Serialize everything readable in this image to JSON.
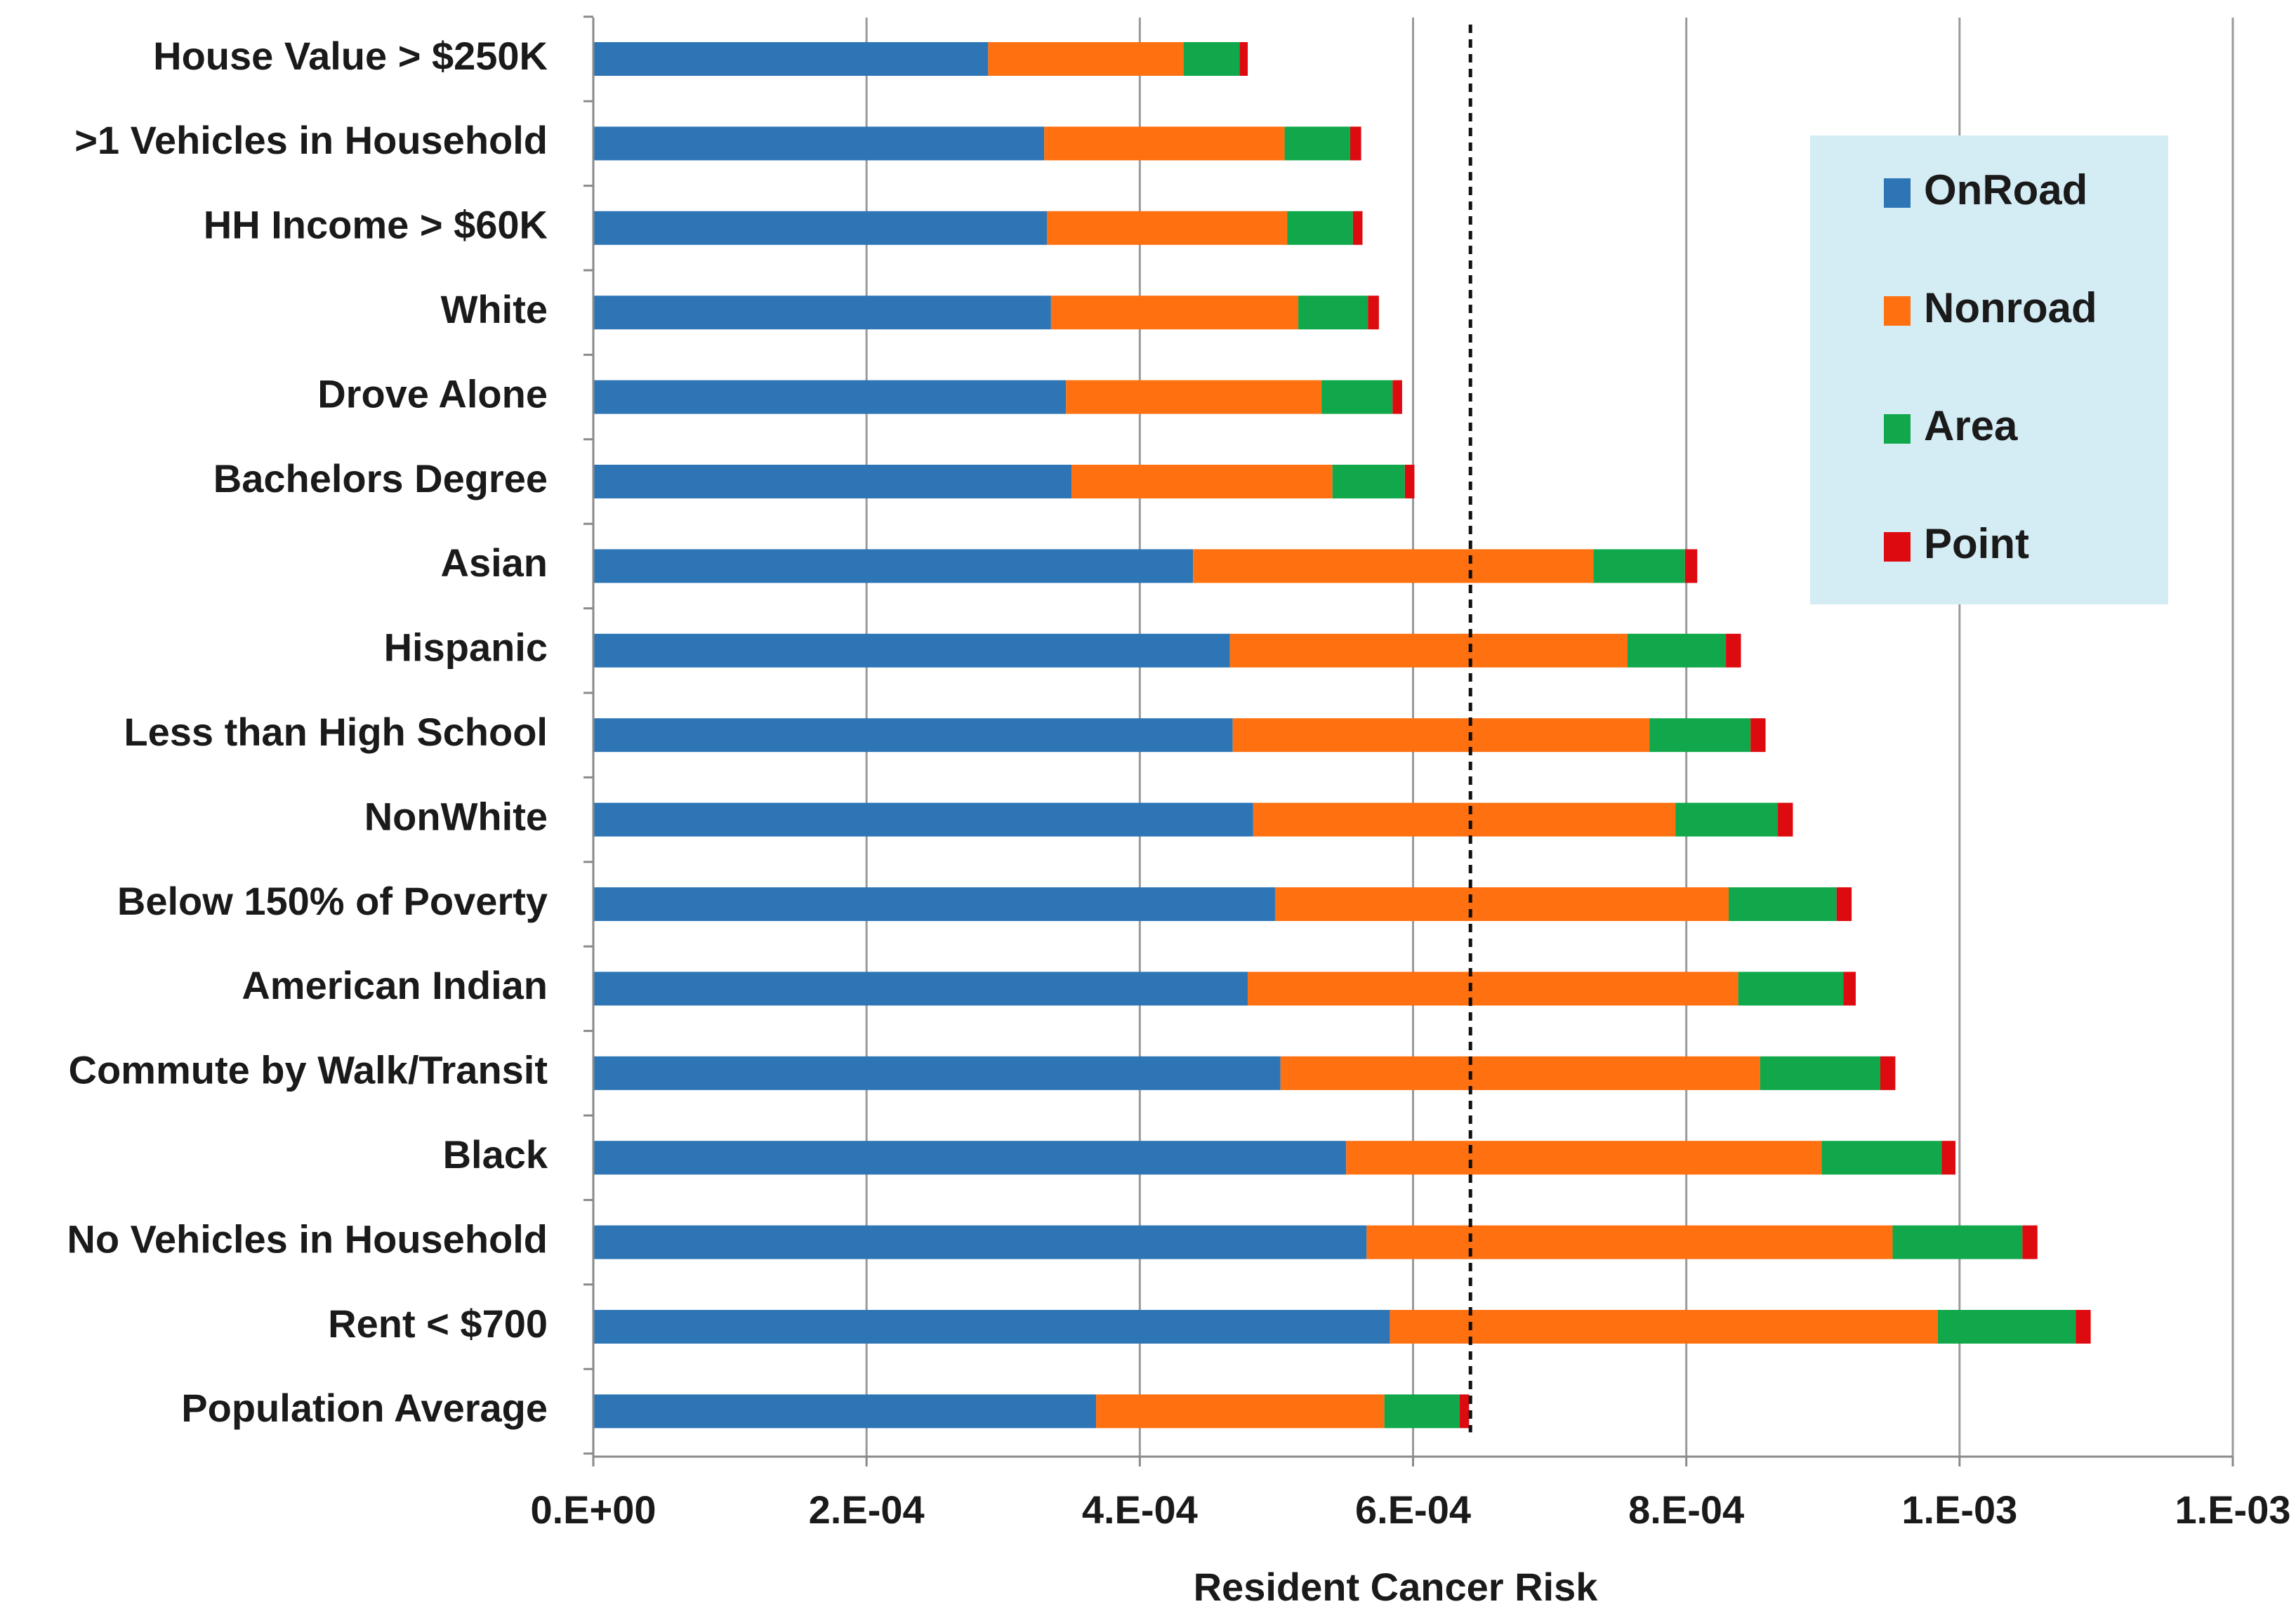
{
  "chart_data": {
    "type": "bar",
    "orientation": "horizontal",
    "stacked": true,
    "title": "",
    "xlabel": "Resident Cancer Risk",
    "ylabel": "",
    "xlim": [
      0,
      0.0012
    ],
    "x_tick_values": [
      0,
      0.0002,
      0.0004,
      0.0006,
      0.0008,
      0.001,
      0.0012
    ],
    "x_tick_labels": [
      "0.E+00",
      "2.E-04",
      "4.E-04",
      "6.E-04",
      "8.E-04",
      "1.E-03",
      "1.E-03"
    ],
    "grid": "vertical",
    "legend_position": "top-right",
    "reference_line": {
      "value": 0.000642,
      "style": "dashed",
      "represents": "Population Average"
    },
    "categories": [
      "House Value > $250K",
      ">1 Vehicles in Household",
      "HH Income > $60K",
      "White",
      "Drove Alone",
      "Bachelors Degree",
      "Asian",
      "Hispanic",
      "Less than High School",
      "NonWhite",
      "Below 150% of Poverty",
      "American Indian",
      "Commute by Walk/Transit",
      "Black",
      "No Vehicles in Household",
      "Rent < $700",
      "Population Average"
    ],
    "series": [
      {
        "name": "OnRoad",
        "color": "#2e75b6",
        "values": [
          0.000289,
          0.00033,
          0.000332,
          0.000335,
          0.000346,
          0.00035,
          0.000439,
          0.000466,
          0.000468,
          0.000483,
          0.000499,
          0.000479,
          0.000503,
          0.000551,
          0.000566,
          0.000583,
          0.000368
        ]
      },
      {
        "name": "Nonroad",
        "color": "#ff7010",
        "values": [
          0.000143,
          0.000176,
          0.000176,
          0.000181,
          0.000187,
          0.000191,
          0.000293,
          0.000291,
          0.000305,
          0.000309,
          0.000332,
          0.000359,
          0.000351,
          0.000348,
          0.000385,
          0.000401,
          0.000211
        ]
      },
      {
        "name": "Area",
        "color": "#10a84a",
        "values": [
          4.1e-05,
          4.8e-05,
          4.8e-05,
          5.1e-05,
          5.2e-05,
          5.3e-05,
          6.7e-05,
          7.2e-05,
          7.4e-05,
          7.5e-05,
          7.9e-05,
          7.7e-05,
          8.8e-05,
          8.8e-05,
          9.5e-05,
          0.000101,
          5.5e-05
        ]
      },
      {
        "name": "Point",
        "color": "#dd0a10",
        "values": [
          6e-06,
          8e-06,
          7e-06,
          8e-06,
          7e-06,
          7e-06,
          9e-06,
          1.1e-05,
          1.1e-05,
          1.1e-05,
          1.1e-05,
          9e-06,
          1.1e-05,
          1e-05,
          1.1e-05,
          1.1e-05,
          7e-06
        ]
      }
    ]
  }
}
